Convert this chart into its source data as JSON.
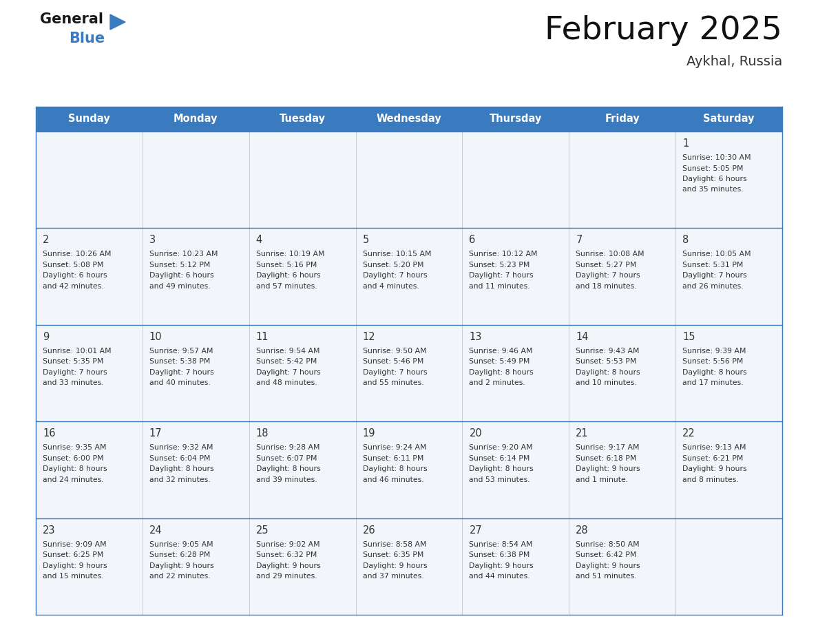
{
  "title": "February 2025",
  "subtitle": "Aykhal, Russia",
  "header_bg": "#3a7abf",
  "header_text_color": "#ffffff",
  "cell_bg": "#f2f6fa",
  "border_color": "#3a7abf",
  "text_color": "#333333",
  "days_of_week": [
    "Sunday",
    "Monday",
    "Tuesday",
    "Wednesday",
    "Thursday",
    "Friday",
    "Saturday"
  ],
  "calendar_data": [
    [
      null,
      null,
      null,
      null,
      null,
      null,
      {
        "day": "1",
        "line1": "Sunrise: 10:30 AM",
        "line2": "Sunset: 5:05 PM",
        "line3": "Daylight: 6 hours",
        "line4": "and 35 minutes."
      }
    ],
    [
      {
        "day": "2",
        "line1": "Sunrise: 10:26 AM",
        "line2": "Sunset: 5:08 PM",
        "line3": "Daylight: 6 hours",
        "line4": "and 42 minutes."
      },
      {
        "day": "3",
        "line1": "Sunrise: 10:23 AM",
        "line2": "Sunset: 5:12 PM",
        "line3": "Daylight: 6 hours",
        "line4": "and 49 minutes."
      },
      {
        "day": "4",
        "line1": "Sunrise: 10:19 AM",
        "line2": "Sunset: 5:16 PM",
        "line3": "Daylight: 6 hours",
        "line4": "and 57 minutes."
      },
      {
        "day": "5",
        "line1": "Sunrise: 10:15 AM",
        "line2": "Sunset: 5:20 PM",
        "line3": "Daylight: 7 hours",
        "line4": "and 4 minutes."
      },
      {
        "day": "6",
        "line1": "Sunrise: 10:12 AM",
        "line2": "Sunset: 5:23 PM",
        "line3": "Daylight: 7 hours",
        "line4": "and 11 minutes."
      },
      {
        "day": "7",
        "line1": "Sunrise: 10:08 AM",
        "line2": "Sunset: 5:27 PM",
        "line3": "Daylight: 7 hours",
        "line4": "and 18 minutes."
      },
      {
        "day": "8",
        "line1": "Sunrise: 10:05 AM",
        "line2": "Sunset: 5:31 PM",
        "line3": "Daylight: 7 hours",
        "line4": "and 26 minutes."
      }
    ],
    [
      {
        "day": "9",
        "line1": "Sunrise: 10:01 AM",
        "line2": "Sunset: 5:35 PM",
        "line3": "Daylight: 7 hours",
        "line4": "and 33 minutes."
      },
      {
        "day": "10",
        "line1": "Sunrise: 9:57 AM",
        "line2": "Sunset: 5:38 PM",
        "line3": "Daylight: 7 hours",
        "line4": "and 40 minutes."
      },
      {
        "day": "11",
        "line1": "Sunrise: 9:54 AM",
        "line2": "Sunset: 5:42 PM",
        "line3": "Daylight: 7 hours",
        "line4": "and 48 minutes."
      },
      {
        "day": "12",
        "line1": "Sunrise: 9:50 AM",
        "line2": "Sunset: 5:46 PM",
        "line3": "Daylight: 7 hours",
        "line4": "and 55 minutes."
      },
      {
        "day": "13",
        "line1": "Sunrise: 9:46 AM",
        "line2": "Sunset: 5:49 PM",
        "line3": "Daylight: 8 hours",
        "line4": "and 2 minutes."
      },
      {
        "day": "14",
        "line1": "Sunrise: 9:43 AM",
        "line2": "Sunset: 5:53 PM",
        "line3": "Daylight: 8 hours",
        "line4": "and 10 minutes."
      },
      {
        "day": "15",
        "line1": "Sunrise: 9:39 AM",
        "line2": "Sunset: 5:56 PM",
        "line3": "Daylight: 8 hours",
        "line4": "and 17 minutes."
      }
    ],
    [
      {
        "day": "16",
        "line1": "Sunrise: 9:35 AM",
        "line2": "Sunset: 6:00 PM",
        "line3": "Daylight: 8 hours",
        "line4": "and 24 minutes."
      },
      {
        "day": "17",
        "line1": "Sunrise: 9:32 AM",
        "line2": "Sunset: 6:04 PM",
        "line3": "Daylight: 8 hours",
        "line4": "and 32 minutes."
      },
      {
        "day": "18",
        "line1": "Sunrise: 9:28 AM",
        "line2": "Sunset: 6:07 PM",
        "line3": "Daylight: 8 hours",
        "line4": "and 39 minutes."
      },
      {
        "day": "19",
        "line1": "Sunrise: 9:24 AM",
        "line2": "Sunset: 6:11 PM",
        "line3": "Daylight: 8 hours",
        "line4": "and 46 minutes."
      },
      {
        "day": "20",
        "line1": "Sunrise: 9:20 AM",
        "line2": "Sunset: 6:14 PM",
        "line3": "Daylight: 8 hours",
        "line4": "and 53 minutes."
      },
      {
        "day": "21",
        "line1": "Sunrise: 9:17 AM",
        "line2": "Sunset: 6:18 PM",
        "line3": "Daylight: 9 hours",
        "line4": "and 1 minute."
      },
      {
        "day": "22",
        "line1": "Sunrise: 9:13 AM",
        "line2": "Sunset: 6:21 PM",
        "line3": "Daylight: 9 hours",
        "line4": "and 8 minutes."
      }
    ],
    [
      {
        "day": "23",
        "line1": "Sunrise: 9:09 AM",
        "line2": "Sunset: 6:25 PM",
        "line3": "Daylight: 9 hours",
        "line4": "and 15 minutes."
      },
      {
        "day": "24",
        "line1": "Sunrise: 9:05 AM",
        "line2": "Sunset: 6:28 PM",
        "line3": "Daylight: 9 hours",
        "line4": "and 22 minutes."
      },
      {
        "day": "25",
        "line1": "Sunrise: 9:02 AM",
        "line2": "Sunset: 6:32 PM",
        "line3": "Daylight: 9 hours",
        "line4": "and 29 minutes."
      },
      {
        "day": "26",
        "line1": "Sunrise: 8:58 AM",
        "line2": "Sunset: 6:35 PM",
        "line3": "Daylight: 9 hours",
        "line4": "and 37 minutes."
      },
      {
        "day": "27",
        "line1": "Sunrise: 8:54 AM",
        "line2": "Sunset: 6:38 PM",
        "line3": "Daylight: 9 hours",
        "line4": "and 44 minutes."
      },
      {
        "day": "28",
        "line1": "Sunrise: 8:50 AM",
        "line2": "Sunset: 6:42 PM",
        "line3": "Daylight: 9 hours",
        "line4": "and 51 minutes."
      },
      null
    ]
  ],
  "fig_width": 11.88,
  "fig_height": 9.18,
  "dpi": 100
}
